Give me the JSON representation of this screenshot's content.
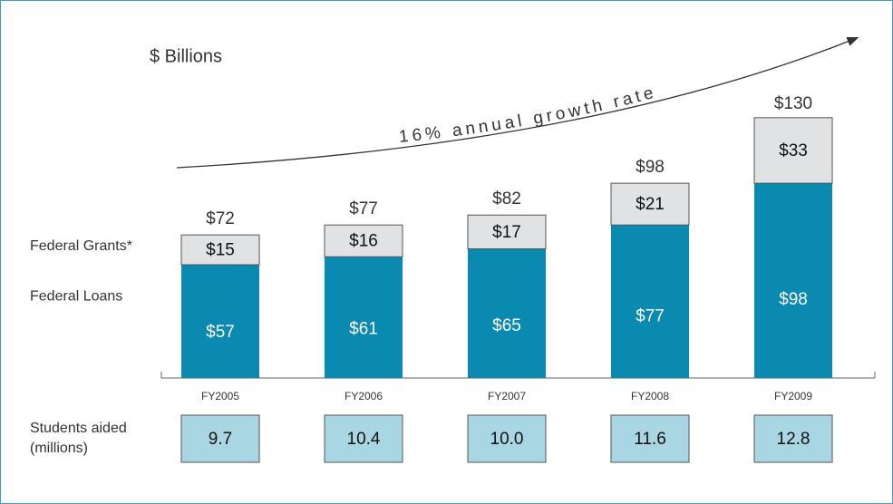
{
  "chart_data": {
    "type": "stacked-bar",
    "unit_label": "$ Billions",
    "annotation": "16% annual growth rate",
    "categories": [
      "FY2005",
      "FY2006",
      "FY2007",
      "FY2008",
      "FY2009"
    ],
    "series": [
      {
        "name": "Federal Loans",
        "color": "#0a89b1",
        "values": [
          57,
          61,
          65,
          77,
          98
        ],
        "value_labels": [
          "$57",
          "$61",
          "$65",
          "$77",
          "$98"
        ]
      },
      {
        "name": "Federal Grants*",
        "color": "#e1e2e4",
        "values": [
          15,
          16,
          17,
          21,
          33
        ],
        "value_labels": [
          "$15",
          "$16",
          "$17",
          "$21",
          "$33"
        ]
      }
    ],
    "totals": [
      72,
      77,
      82,
      98,
      130
    ],
    "total_labels": [
      "$72",
      "$77",
      "$82",
      "$98",
      "$130"
    ],
    "students_aided": {
      "label_lines": [
        "Students aided",
        "(millions)"
      ],
      "color": "#a9d6e3",
      "values": [
        9.7,
        10.4,
        10.0,
        11.6,
        12.8
      ],
      "value_labels": [
        "9.7",
        "10.4",
        "10.0",
        "11.6",
        "12.8"
      ]
    }
  }
}
